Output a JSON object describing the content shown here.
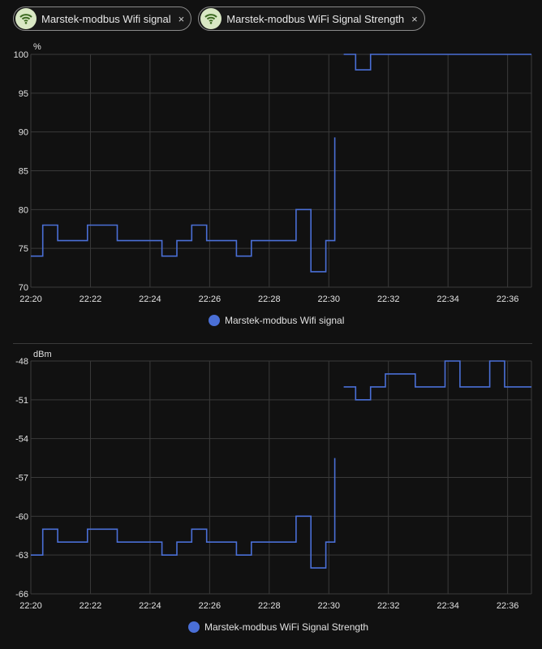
{
  "filters": [
    {
      "label": "Marstek-modbus Wifi signal",
      "icon": "wifi-icon",
      "close": "×"
    },
    {
      "label": "Marstek-modbus WiFi Signal Strength",
      "icon": "wifi-icon",
      "close": "×"
    }
  ],
  "colors": {
    "line": "#4a6fd6",
    "chip_icon_bg": "#d9e8c4",
    "chip_icon_fg": "#3d6b22"
  },
  "chart_data": [
    {
      "type": "line",
      "unit": "%",
      "ylim": [
        70,
        100
      ],
      "yticks": [
        "100",
        "95",
        "90",
        "85",
        "80",
        "75",
        "70"
      ],
      "xticks": [
        "22:20",
        "22:22",
        "22:24",
        "22:26",
        "22:28",
        "22:30",
        "22:32",
        "22:34",
        "22:36"
      ],
      "xlim": [
        "22:20",
        "22:36.8"
      ],
      "legend": "Marstek-modbus Wifi signal",
      "grid": true,
      "series": [
        {
          "name": "Marstek-modbus Wifi signal",
          "segments": [
            [
              [
                "22:20",
                74
              ],
              [
                "22:20.4",
                74
              ],
              [
                "22:20.4",
                78
              ],
              [
                "22:20.9",
                78
              ],
              [
                "22:20.9",
                76
              ],
              [
                "22:21.9",
                76
              ],
              [
                "22:21.9",
                78
              ],
              [
                "22:22.9",
                78
              ],
              [
                "22:22.9",
                76
              ],
              [
                "22:24.4",
                76
              ],
              [
                "22:24.4",
                74
              ],
              [
                "22:24.9",
                74
              ],
              [
                "22:24.9",
                76
              ],
              [
                "22:25.4",
                76
              ],
              [
                "22:25.4",
                78
              ],
              [
                "22:25.9",
                78
              ],
              [
                "22:25.9",
                76
              ],
              [
                "22:26.9",
                76
              ],
              [
                "22:26.9",
                74
              ],
              [
                "22:27.4",
                74
              ],
              [
                "22:27.4",
                76
              ],
              [
                "22:28.9",
                76
              ],
              [
                "22:28.9",
                80
              ],
              [
                "22:29.4",
                80
              ],
              [
                "22:29.4",
                72
              ],
              [
                "22:29.9",
                72
              ],
              [
                "22:29.9",
                76
              ],
              [
                "22:30.2",
                76
              ],
              [
                "22:30.2",
                89.3
              ]
            ],
            [
              [
                "22:30.5",
                100
              ],
              [
                "22:30.9",
                100
              ],
              [
                "22:30.9",
                98
              ],
              [
                "22:31.4",
                98
              ],
              [
                "22:31.4",
                100
              ],
              [
                "22:36.8",
                100
              ]
            ]
          ]
        }
      ]
    },
    {
      "type": "line",
      "unit": "dBm",
      "ylim": [
        -66,
        -48
      ],
      "yticks": [
        "-48",
        "-51",
        "-54",
        "-57",
        "-60",
        "-63",
        "-66"
      ],
      "xticks": [
        "22:20",
        "22:22",
        "22:24",
        "22:26",
        "22:28",
        "22:30",
        "22:32",
        "22:34",
        "22:36"
      ],
      "xlim": [
        "22:20",
        "22:36.8"
      ],
      "legend": "Marstek-modbus WiFi Signal Strength",
      "grid": true,
      "series": [
        {
          "name": "Marstek-modbus WiFi Signal Strength",
          "segments": [
            [
              [
                "22:20",
                -63
              ],
              [
                "22:20.4",
                -63
              ],
              [
                "22:20.4",
                -61
              ],
              [
                "22:20.9",
                -61
              ],
              [
                "22:20.9",
                -62
              ],
              [
                "22:21.9",
                -62
              ],
              [
                "22:21.9",
                -61
              ],
              [
                "22:22.9",
                -61
              ],
              [
                "22:22.9",
                -62
              ],
              [
                "22:24.4",
                -62
              ],
              [
                "22:24.4",
                -63
              ],
              [
                "22:24.9",
                -63
              ],
              [
                "22:24.9",
                -62
              ],
              [
                "22:25.4",
                -62
              ],
              [
                "22:25.4",
                -61
              ],
              [
                "22:25.9",
                -61
              ],
              [
                "22:25.9",
                -62
              ],
              [
                "22:26.9",
                -62
              ],
              [
                "22:26.9",
                -63
              ],
              [
                "22:27.4",
                -63
              ],
              [
                "22:27.4",
                -62
              ],
              [
                "22:28.9",
                -62
              ],
              [
                "22:28.9",
                -60
              ],
              [
                "22:29.4",
                -60
              ],
              [
                "22:29.4",
                -64
              ],
              [
                "22:29.9",
                -64
              ],
              [
                "22:29.9",
                -62
              ],
              [
                "22:30.2",
                -62
              ],
              [
                "22:30.2",
                -55.5
              ]
            ],
            [
              [
                "22:30.5",
                -50
              ],
              [
                "22:30.9",
                -50
              ],
              [
                "22:30.9",
                -51
              ],
              [
                "22:31.4",
                -51
              ],
              [
                "22:31.4",
                -50
              ],
              [
                "22:31.9",
                -50
              ],
              [
                "22:31.9",
                -49
              ],
              [
                "22:32.9",
                -49
              ],
              [
                "22:32.9",
                -50
              ],
              [
                "22:33.9",
                -50
              ],
              [
                "22:33.9",
                -48
              ],
              [
                "22:34.4",
                -48
              ],
              [
                "22:34.4",
                -50
              ],
              [
                "22:35.4",
                -50
              ],
              [
                "22:35.4",
                -48
              ],
              [
                "22:35.9",
                -48
              ],
              [
                "22:35.9",
                -50
              ],
              [
                "22:36.8",
                -50
              ]
            ]
          ]
        }
      ]
    }
  ]
}
